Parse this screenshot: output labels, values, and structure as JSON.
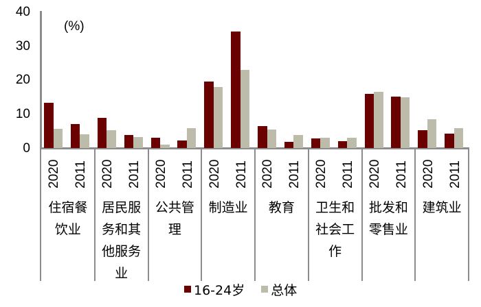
{
  "chart_data": {
    "type": "bar",
    "title": "",
    "unit_label": "(%)",
    "xlabel": "",
    "ylabel": "(%)",
    "ylim": [
      0,
      40
    ],
    "yticks": [
      0,
      10,
      20,
      30,
      40
    ],
    "grid": false,
    "legend_position": "bottom",
    "categories": [
      {
        "label": "住宿餐饮业",
        "lines": [
          "住宿餐",
          "饮业"
        ]
      },
      {
        "label": "居民服务和其他服务业",
        "lines": [
          "居民服",
          "务和其",
          "他服务",
          "业"
        ]
      },
      {
        "label": "公共管理",
        "lines": [
          "公共管",
          "理"
        ]
      },
      {
        "label": "制造业",
        "lines": [
          "制造业"
        ]
      },
      {
        "label": "教育",
        "lines": [
          "教育"
        ]
      },
      {
        "label": "卫生和社会工作",
        "lines": [
          "卫生和",
          "社会工",
          "作"
        ]
      },
      {
        "label": "批发和零售业",
        "lines": [
          "批发和",
          "零售业"
        ]
      },
      {
        "label": "建筑业",
        "lines": [
          "建筑业"
        ]
      }
    ],
    "sub_categories": [
      "2020",
      "2011"
    ],
    "series": [
      {
        "name": "16-24岁",
        "color": "#6b0000",
        "values": [
          [
            13.2,
            7.0
          ],
          [
            8.8,
            3.8
          ],
          [
            3.0,
            2.2
          ],
          [
            19.5,
            34.1
          ],
          [
            6.5,
            1.9
          ],
          [
            2.9,
            2.0
          ],
          [
            15.8,
            15.0
          ],
          [
            5.2,
            4.3
          ]
        ]
      },
      {
        "name": "总体",
        "color": "#bdbbaa",
        "values": [
          [
            5.6,
            4.0
          ],
          [
            5.2,
            3.2
          ],
          [
            1.0,
            5.9
          ],
          [
            17.8,
            22.8
          ],
          [
            5.5,
            3.9
          ],
          [
            3.1,
            3.1
          ],
          [
            16.5,
            14.9
          ],
          [
            8.5,
            5.9
          ]
        ]
      }
    ]
  },
  "legend": {
    "items": [
      {
        "label": "16-24岁",
        "color": "#6b0000"
      },
      {
        "label": "总体",
        "color": "#bdbbaa"
      }
    ]
  },
  "axis": {
    "y_ticks": [
      "40",
      "30",
      "20",
      "10",
      "0"
    ],
    "unit": "(%)"
  }
}
